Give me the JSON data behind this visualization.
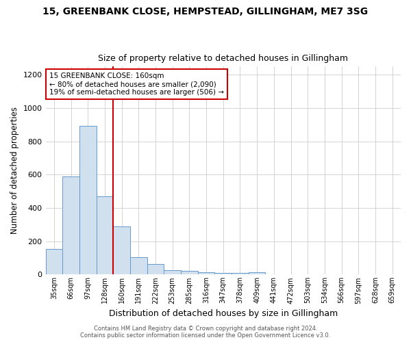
{
  "title1": "15, GREENBANK CLOSE, HEMPSTEAD, GILLINGHAM, ME7 3SG",
  "title2": "Size of property relative to detached houses in Gillingham",
  "xlabel": "Distribution of detached houses by size in Gillingham",
  "ylabel": "Number of detached properties",
  "bar_labels": [
    "35sqm",
    "66sqm",
    "97sqm",
    "128sqm",
    "160sqm",
    "191sqm",
    "222sqm",
    "253sqm",
    "285sqm",
    "316sqm",
    "347sqm",
    "378sqm",
    "409sqm",
    "441sqm",
    "472sqm",
    "503sqm",
    "534sqm",
    "566sqm",
    "597sqm",
    "628sqm",
    "659sqm"
  ],
  "bar_values": [
    155,
    590,
    895,
    470,
    290,
    105,
    65,
    28,
    22,
    15,
    10,
    10,
    12,
    0,
    0,
    0,
    0,
    0,
    0,
    0,
    0
  ],
  "bar_color": "#d0e0ef",
  "bar_edge_color": "#6699cc",
  "red_line_index": 4,
  "red_line_color": "#cc0000",
  "annotation_text": "15 GREENBANK CLOSE: 160sqm\n← 80% of detached houses are smaller (2,090)\n19% of semi-detached houses are larger (506) →",
  "annotation_box_color": "#cc0000",
  "ylim": [
    0,
    1250
  ],
  "yticks": [
    0,
    200,
    400,
    600,
    800,
    1000,
    1200
  ],
  "footer": "Contains HM Land Registry data © Crown copyright and database right 2024.\nContains public sector information licensed under the Open Government Licence v3.0.",
  "background_color": "#ffffff",
  "plot_background": "#ffffff",
  "grid_color": "#cccccc",
  "title1_fontsize": 10,
  "title2_fontsize": 9
}
